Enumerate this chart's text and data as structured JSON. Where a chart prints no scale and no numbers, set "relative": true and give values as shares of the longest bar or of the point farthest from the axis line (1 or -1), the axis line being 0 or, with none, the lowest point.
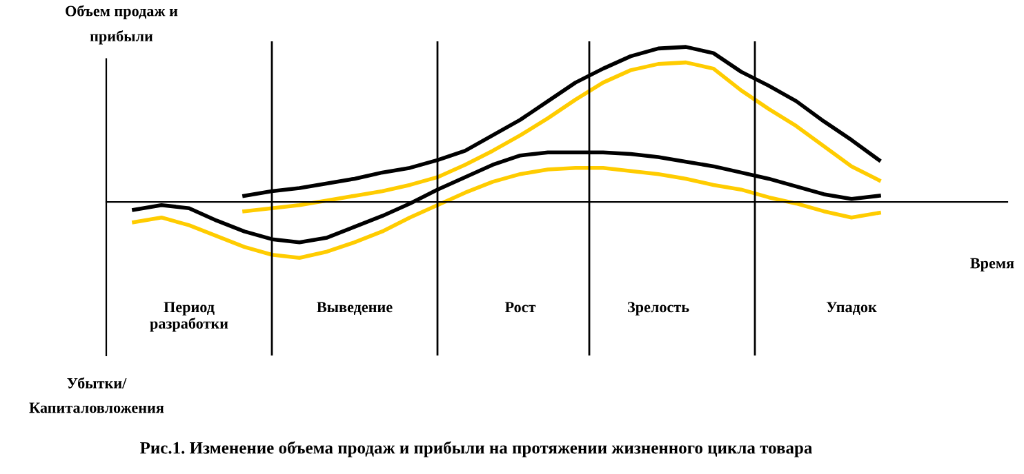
{
  "chart_data": {
    "type": "line",
    "relative": true,
    "title": "Рис.1. Изменение объема продаж и прибыли на протяжении жизненного цикла товара",
    "ylabel": "Объем продаж и\nприбыли",
    "xlabel": "Время",
    "annotations": [
      "Убытки/\nКапиталовложения"
    ],
    "categories": [
      null,
      null,
      null,
      "Период\nразработки",
      null,
      null,
      null,
      null,
      null,
      "Выведение",
      null,
      null,
      null,
      null,
      null,
      "Рост",
      null,
      null,
      null,
      null,
      "Зрелость",
      null,
      null,
      null,
      null,
      null,
      null,
      "Упадок",
      null,
      null,
      null,
      null,
      null
    ],
    "tick_labels": "x",
    "grid": "x",
    "legend": false,
    "marker": "none",
    "line_style": "solid",
    "series": [
      {
        "color": "#000000",
        "values": [
          null,
          null,
          null,
          null,
          null,
          0.04,
          0.07,
          0.09,
          0.12,
          0.15,
          0.19,
          0.22,
          0.27,
          0.33,
          0.43,
          0.53,
          0.65,
          0.77,
          0.86,
          0.94,
          0.99,
          1.0,
          0.96,
          0.84,
          0.75,
          0.65,
          0.52,
          0.4,
          0.27,
          null,
          null,
          null,
          null
        ]
      },
      {
        "color": "#ffcc00",
        "values": [
          null,
          null,
          null,
          null,
          null,
          -0.06,
          -0.04,
          -0.02,
          0.01,
          0.04,
          0.07,
          0.11,
          0.16,
          0.24,
          0.33,
          0.43,
          0.54,
          0.66,
          0.77,
          0.85,
          0.89,
          0.9,
          0.86,
          0.72,
          0.6,
          0.49,
          0.36,
          0.23,
          0.14,
          null,
          null,
          null,
          null
        ]
      },
      {
        "color": "#000000",
        "values": [
          null,
          -0.05,
          -0.02,
          -0.04,
          -0.12,
          -0.19,
          -0.24,
          -0.26,
          -0.23,
          -0.16,
          -0.09,
          -0.01,
          0.08,
          0.16,
          0.24,
          0.3,
          0.32,
          0.32,
          0.32,
          0.31,
          0.29,
          0.26,
          0.23,
          0.19,
          0.15,
          0.1,
          0.05,
          0.02,
          0.04,
          null,
          null,
          null,
          null
        ]
      },
      {
        "color": "#ffcc00",
        "values": [
          null,
          -0.13,
          -0.1,
          -0.15,
          -0.22,
          -0.29,
          -0.34,
          -0.36,
          -0.32,
          -0.26,
          -0.19,
          -0.1,
          -0.02,
          0.06,
          0.13,
          0.18,
          0.21,
          0.22,
          0.22,
          0.2,
          0.18,
          0.15,
          0.11,
          0.08,
          0.03,
          -0.01,
          -0.06,
          -0.1,
          -0.07,
          null,
          null,
          null,
          null
        ]
      }
    ]
  }
}
